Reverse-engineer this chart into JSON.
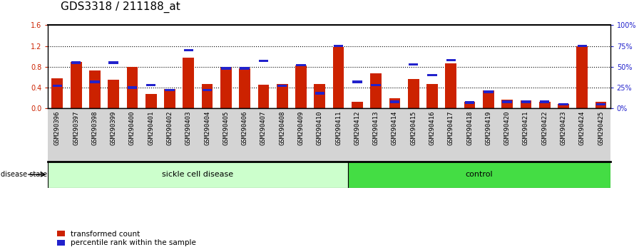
{
  "title": "GDS3318 / 211188_at",
  "samples": [
    "GSM290396",
    "GSM290397",
    "GSM290398",
    "GSM290399",
    "GSM290400",
    "GSM290401",
    "GSM290402",
    "GSM290403",
    "GSM290404",
    "GSM290405",
    "GSM290406",
    "GSM290407",
    "GSM290408",
    "GSM290409",
    "GSM290410",
    "GSM290411",
    "GSM290412",
    "GSM290413",
    "GSM290414",
    "GSM290415",
    "GSM290416",
    "GSM290417",
    "GSM290418",
    "GSM290419",
    "GSM290420",
    "GSM290421",
    "GSM290422",
    "GSM290423",
    "GSM290424",
    "GSM290425"
  ],
  "red_values": [
    0.58,
    0.9,
    0.73,
    0.55,
    0.8,
    0.28,
    0.37,
    0.97,
    0.47,
    0.78,
    0.77,
    0.45,
    0.47,
    0.83,
    0.47,
    1.18,
    0.12,
    0.68,
    0.2,
    0.56,
    0.47,
    0.87,
    0.12,
    0.35,
    0.17,
    0.15,
    0.12,
    0.08,
    1.2,
    0.12
  ],
  "blue_pct": [
    27,
    55,
    32,
    55,
    25,
    28,
    22,
    70,
    22,
    48,
    48,
    57,
    27,
    52,
    18,
    75,
    32,
    28,
    8,
    53,
    40,
    58,
    7,
    20,
    8,
    8,
    8,
    5,
    75,
    5
  ],
  "sickle_count": 16,
  "control_count": 14,
  "ylim_left": [
    0,
    1.6
  ],
  "ylim_right": [
    0,
    100
  ],
  "left_ticks": [
    0,
    0.4,
    0.8,
    1.2,
    1.6
  ],
  "right_ticks": [
    0,
    25,
    50,
    75,
    100
  ],
  "red_color": "#cc2200",
  "blue_color": "#2222cc",
  "sickle_color": "#ccffcc",
  "control_color": "#44dd44",
  "xtick_bg": "#d4d4d4",
  "bar_width": 0.6,
  "title_fontsize": 11,
  "tick_fontsize": 7,
  "label_fontsize": 8
}
